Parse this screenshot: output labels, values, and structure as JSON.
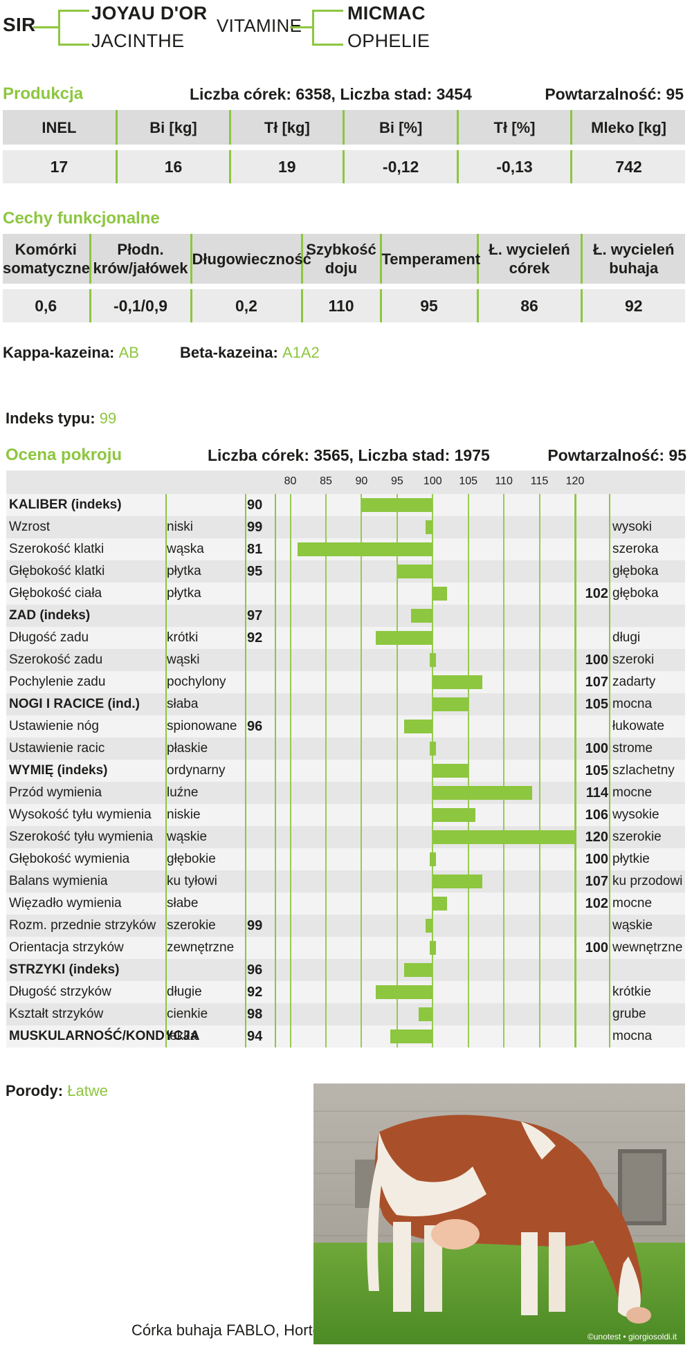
{
  "pedigree": {
    "sir_label": "SIR",
    "sire": "JOYAU D'OR",
    "dam": "JACINTHE",
    "mgs_left": "VITAMINE",
    "mgs_sire": "MICMAC",
    "mgs_dam": "OPHELIE"
  },
  "production": {
    "title": "Produkcja",
    "counts": "Liczba córek: 6358, Liczba stad: 3454",
    "repeat": "Powtarzalność: 95",
    "headers": [
      "INEL",
      "Bi [kg]",
      "Tł [kg]",
      "Bi [%]",
      "Tł [%]",
      "Mleko [kg]"
    ],
    "values": [
      "17",
      "16",
      "19",
      "-0,12",
      "-0,13",
      "742"
    ]
  },
  "functional": {
    "title": "Cechy funkcjonalne",
    "headers": [
      "Komórki somatyczne",
      "Płodn. krów/jałówek",
      "Długowieczność",
      "Szybkość doju",
      "Temperament",
      "Ł. wycieleń córek",
      "Ł. wycieleń buhaja"
    ],
    "values": [
      "0,6",
      "-0,1/0,9",
      "0,2",
      "110",
      "95",
      "86",
      "92"
    ]
  },
  "casein": {
    "kappa_label": "Kappa-kazeina:",
    "kappa_value": "AB",
    "beta_label": "Beta-kazeina:",
    "beta_value": "A1A2"
  },
  "type_index": {
    "label": "Indeks typu:",
    "value": "99"
  },
  "conformation": {
    "title": "Ocena pokroju",
    "counts": "Liczba córek: 3565, Liczba stad: 1975",
    "repeat": "Powtarzalność: 95"
  },
  "chart_data": {
    "type": "bar",
    "axis_ticks": [
      "80",
      "85",
      "90",
      "95",
      "100",
      "105",
      "110",
      "115",
      "120"
    ],
    "xlim": [
      78,
      120
    ],
    "baseline": 100,
    "rows": [
      {
        "trait": "KALIBER (indeks)",
        "bold": true,
        "low": "",
        "high": "",
        "value": 90,
        "left_val": "90",
        "right_val": ""
      },
      {
        "trait": "Wzrost",
        "bold": false,
        "low": "niski",
        "high": "wysoki",
        "value": 99,
        "left_val": "99",
        "right_val": ""
      },
      {
        "trait": "Szerokość klatki",
        "bold": false,
        "low": "wąska",
        "high": "szeroka",
        "value": 81,
        "left_val": "81",
        "right_val": ""
      },
      {
        "trait": "Głębokość klatki",
        "bold": false,
        "low": "płytka",
        "high": "głęboka",
        "value": 95,
        "left_val": "95",
        "right_val": ""
      },
      {
        "trait": "Głębokość ciała",
        "bold": false,
        "low": "płytka",
        "high": "głęboka",
        "value": 102,
        "left_val": "",
        "right_val": "102"
      },
      {
        "trait": "ZAD (indeks)",
        "bold": true,
        "low": "",
        "high": "",
        "value": 97,
        "left_val": "97",
        "right_val": ""
      },
      {
        "trait": "Długość zadu",
        "bold": false,
        "low": "krótki",
        "high": "długi",
        "value": 92,
        "left_val": "92",
        "right_val": ""
      },
      {
        "trait": "Szerokość zadu",
        "bold": false,
        "low": "wąski",
        "high": "szeroki",
        "value": 100,
        "left_val": "",
        "right_val": "100"
      },
      {
        "trait": "Pochylenie zadu",
        "bold": false,
        "low": "pochylony",
        "high": "zadarty",
        "value": 107,
        "left_val": "",
        "right_val": "107"
      },
      {
        "trait": "NOGI I RACICE (ind.)",
        "bold": true,
        "low": "słaba",
        "high": "mocna",
        "value": 105,
        "left_val": "",
        "right_val": "105"
      },
      {
        "trait": "Ustawienie nóg",
        "bold": false,
        "low": "spionowane",
        "high": "łukowate",
        "value": 96,
        "left_val": "96",
        "right_val": ""
      },
      {
        "trait": "Ustawienie racic",
        "bold": false,
        "low": "płaskie",
        "high": "strome",
        "value": 100,
        "left_val": "",
        "right_val": "100"
      },
      {
        "trait": "WYMIĘ (indeks)",
        "bold": true,
        "low": "ordynarny",
        "high": "szlachetny",
        "value": 105,
        "left_val": "",
        "right_val": "105"
      },
      {
        "trait": "Przód wymienia",
        "bold": false,
        "low": "luźne",
        "high": "mocne",
        "value": 114,
        "left_val": "",
        "right_val": "114"
      },
      {
        "trait": "Wysokość tyłu wymienia",
        "bold": false,
        "low": "niskie",
        "high": "wysokie",
        "value": 106,
        "left_val": "",
        "right_val": "106"
      },
      {
        "trait": "Szerokość tyłu wymienia",
        "bold": false,
        "low": "wąskie",
        "high": "szerokie",
        "value": 120,
        "left_val": "",
        "right_val": "120"
      },
      {
        "trait": "Głębokość wymienia",
        "bold": false,
        "low": "głębokie",
        "high": "płytkie",
        "value": 100,
        "left_val": "",
        "right_val": "100"
      },
      {
        "trait": "Balans wymienia",
        "bold": false,
        "low": "ku tyłowi",
        "high": "ku przodowi",
        "value": 107,
        "left_val": "",
        "right_val": "107"
      },
      {
        "trait": "Więzadło wymienia",
        "bold": false,
        "low": "słabe",
        "high": "mocne",
        "value": 102,
        "left_val": "",
        "right_val": "102"
      },
      {
        "trait": "Rozm. przednie strzyków",
        "bold": false,
        "low": "szerokie",
        "high": "wąskie",
        "value": 99,
        "left_val": "99",
        "right_val": ""
      },
      {
        "trait": "Orientacja strzyków",
        "bold": false,
        "low": "zewnętrzne",
        "high": "wewnętrzne",
        "value": 100,
        "left_val": "",
        "right_val": "100"
      },
      {
        "trait": "STRZYKI (indeks)",
        "bold": true,
        "low": "",
        "high": "",
        "value": 96,
        "left_val": "96",
        "right_val": ""
      },
      {
        "trait": "Długość strzyków",
        "bold": false,
        "low": "długie",
        "high": "krótkie",
        "value": 92,
        "left_val": "92",
        "right_val": ""
      },
      {
        "trait": "Kształt strzyków",
        "bold": false,
        "low": "cienkie",
        "high": "grube",
        "value": 98,
        "left_val": "98",
        "right_val": ""
      },
      {
        "trait": "MUSKULARNOŚĆ/KONDYCJA",
        "bold": true,
        "low": "lekka",
        "high": "mocna",
        "value": 94,
        "left_val": "94",
        "right_val": ""
      }
    ]
  },
  "calving": {
    "label": "Porody:",
    "value": "Łatwe"
  },
  "photo": {
    "caption": "Córka buhaja FABLO, Hortense",
    "credit": "©unotest • giorgiosoldi.it"
  },
  "colors": {
    "accent": "#8dc63f",
    "header_bg": "#dcdcdc",
    "value_bg": "#ebebeb"
  }
}
